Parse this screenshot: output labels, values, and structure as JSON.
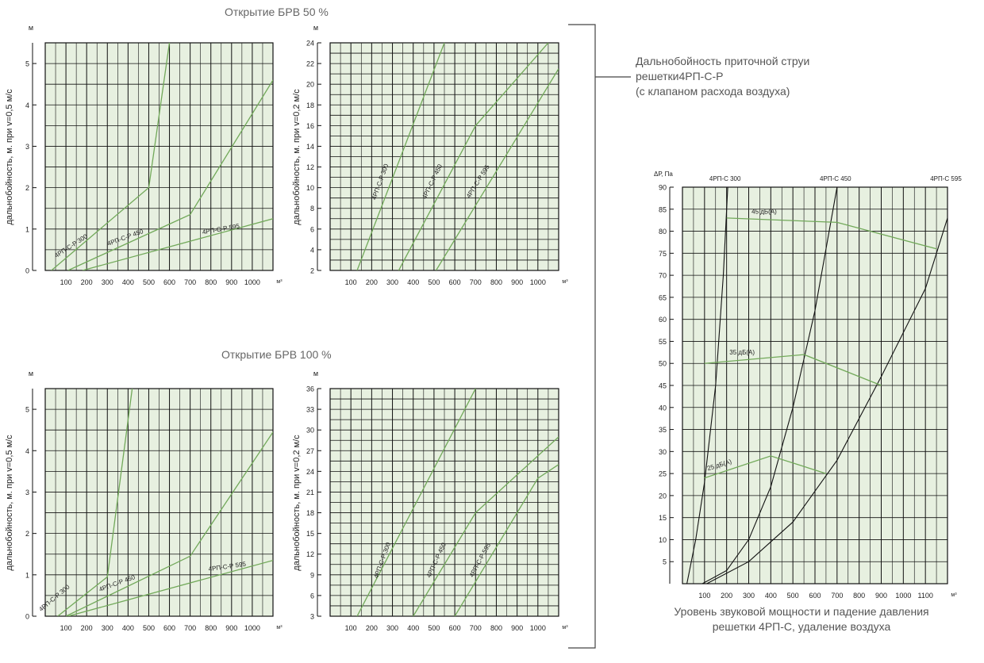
{
  "section_50_title": "Открытие БРВ 50 %",
  "section_100_title": "Открытие БРВ 100 %",
  "side_label": {
    "line1": "Дальнобойность приточной струи",
    "line2": "решетки4РП-С-Р",
    "line3": "(с клапаном расхода воздуха)"
  },
  "bottom_caption": {
    "line1": "Уровень звуковой мощности и падение давления",
    "line2": "решетки 4РП-С, удаление воздуха"
  },
  "colors": {
    "grid_bg": "#e7f0e0",
    "grid_line": "#111111",
    "green_line": "#72a95a",
    "black_line": "#111111"
  },
  "chart_data": [
    {
      "id": "c1",
      "type": "line",
      "ylabel": "дальнобойность, м. при v=0,5 м/с",
      "yunit": "м",
      "xunit": "м³",
      "xlim": [
        0,
        1100
      ],
      "ylim": [
        0,
        5.5
      ],
      "xticks": [
        100,
        200,
        300,
        400,
        500,
        600,
        700,
        800,
        900,
        1000
      ],
      "yticks": [
        0,
        1,
        2,
        3,
        4,
        5
      ],
      "series": [
        {
          "name": "4РП-С-Р 300",
          "points": [
            [
              30,
              0
            ],
            [
              500,
              2.0
            ],
            [
              600,
              5.5
            ]
          ]
        },
        {
          "name": "4РП-С-Р 450",
          "points": [
            [
              110,
              0
            ],
            [
              700,
              1.35
            ],
            [
              1100,
              4.6
            ]
          ]
        },
        {
          "name": "4РП-С-Р 595",
          "points": [
            [
              180,
              0
            ],
            [
              1100,
              1.25
            ]
          ]
        }
      ],
      "labels": [
        {
          "text": "4РП-С-Р 300",
          "x": 130,
          "y": 0.55,
          "angle": -33
        },
        {
          "text": "4РП-С-Р 450",
          "x": 390,
          "y": 0.75,
          "angle": -20
        },
        {
          "text": "4РП-С-Р 595",
          "x": 850,
          "y": 0.95,
          "angle": -10
        }
      ]
    },
    {
      "id": "c2",
      "type": "line",
      "ylabel": "дальнобойность, м. при v=0,2 м/с",
      "yunit": "м",
      "xunit": "м³",
      "xlim": [
        0,
        1100
      ],
      "ylim": [
        2,
        24
      ],
      "xticks": [
        100,
        200,
        300,
        400,
        500,
        600,
        700,
        800,
        900,
        1000
      ],
      "yticks": [
        2,
        4,
        6,
        8,
        10,
        12,
        14,
        16,
        18,
        20,
        22,
        24
      ],
      "series": [
        {
          "name": "4РП-С-Р 300",
          "points": [
            [
              130,
              2
            ],
            [
              550,
              24
            ]
          ]
        },
        {
          "name": "4РП-С-Р 450",
          "points": [
            [
              330,
              2
            ],
            [
              700,
              16
            ],
            [
              1050,
              24
            ]
          ]
        },
        {
          "name": "4РП-С-Р 595",
          "points": [
            [
              510,
              2
            ],
            [
              1100,
              21.5
            ]
          ]
        }
      ],
      "labels": [
        {
          "text": "4РП-С-Р 300",
          "x": 250,
          "y": 10.5,
          "angle": -70
        },
        {
          "text": "4РП-С-Р 450",
          "x": 500,
          "y": 10.5,
          "angle": -64
        },
        {
          "text": "4РП-С-Р 595",
          "x": 720,
          "y": 10.5,
          "angle": -58
        }
      ]
    },
    {
      "id": "c3",
      "type": "line",
      "ylabel": "дальнобойность, м. при v=0,5 м/с",
      "yunit": "м",
      "xunit": "м³",
      "xlim": [
        0,
        1100
      ],
      "ylim": [
        0,
        5.5
      ],
      "xticks": [
        100,
        200,
        300,
        400,
        500,
        600,
        700,
        800,
        900,
        1000
      ],
      "yticks": [
        0,
        1,
        2,
        3,
        4,
        5
      ],
      "series": [
        {
          "name": "4РП-С-Р 300",
          "points": [
            [
              60,
              0
            ],
            [
              300,
              0.95
            ],
            [
              420,
              5.5
            ]
          ]
        },
        {
          "name": "4РП-С-Р 450",
          "points": [
            [
              100,
              0
            ],
            [
              700,
              1.45
            ],
            [
              1100,
              4.45
            ]
          ]
        },
        {
          "name": "4РП-С-Р 595",
          "points": [
            [
              110,
              0
            ],
            [
              1100,
              1.35
            ]
          ]
        }
      ],
      "labels": [
        {
          "text": "4РП-С-Р 300",
          "x": 50,
          "y": 0.4,
          "angle": -40
        },
        {
          "text": "4РП-С-Р 450",
          "x": 350,
          "y": 0.75,
          "angle": -20
        },
        {
          "text": "4РП-С-Р 595",
          "x": 880,
          "y": 1.15,
          "angle": -8
        }
      ]
    },
    {
      "id": "c4",
      "type": "line",
      "ylabel": "дальнобойность, м. при v=0,2 м/с",
      "yunit": "м",
      "xunit": "м³",
      "xlim": [
        0,
        1100
      ],
      "ylim": [
        3,
        36
      ],
      "xticks": [
        100,
        200,
        300,
        400,
        500,
        600,
        700,
        800,
        900,
        1000
      ],
      "yticks": [
        3,
        6,
        9,
        12,
        15,
        18,
        21,
        24,
        27,
        30,
        33,
        36
      ],
      "series": [
        {
          "name": "4РП-С-Р 300",
          "points": [
            [
              130,
              3
            ],
            [
              700,
              36
            ]
          ]
        },
        {
          "name": "4РП-С-Р 450",
          "points": [
            [
              400,
              3
            ],
            [
              700,
              18
            ],
            [
              1100,
              29
            ]
          ]
        },
        {
          "name": "4РП-С-Р 595",
          "points": [
            [
              600,
              3
            ],
            [
              1000,
              23
            ],
            [
              1100,
              25
            ]
          ]
        }
      ],
      "labels": [
        {
          "text": "4РП-С-Р 300",
          "x": 260,
          "y": 11,
          "angle": -70
        },
        {
          "text": "4РП-С-Р 450",
          "x": 520,
          "y": 11,
          "angle": -65
        },
        {
          "text": "4РП-С-Р 595",
          "x": 730,
          "y": 11,
          "angle": -62
        }
      ]
    },
    {
      "id": "c5",
      "type": "line",
      "ylabel": "ΔР, Па",
      "xunit": "м³",
      "xlim": [
        0,
        1200
      ],
      "ylim": [
        0,
        90
      ],
      "xticks": [
        100,
        200,
        300,
        400,
        500,
        600,
        700,
        800,
        900,
        1000,
        1100
      ],
      "yticks": [
        5,
        10,
        15,
        20,
        25,
        30,
        35,
        40,
        45,
        50,
        55,
        60,
        65,
        70,
        75,
        80,
        85,
        90
      ],
      "series_labels": [
        {
          "text": "4РП-С 300",
          "x": 200
        },
        {
          "text": "4РП-С 450",
          "x": 700
        },
        {
          "text": "4РП-С 595",
          "x": 1200
        }
      ],
      "series": [
        {
          "name": "4РП-С 300",
          "color": "black",
          "points": [
            [
              20,
              0
            ],
            [
              60,
              10
            ],
            [
              100,
              23
            ],
            [
              150,
              45
            ],
            [
              185,
              70
            ],
            [
              205,
              90
            ]
          ]
        },
        {
          "name": "4РП-С 450",
          "color": "black",
          "points": [
            [
              90,
              0
            ],
            [
              200,
              3
            ],
            [
              300,
              10
            ],
            [
              400,
              22
            ],
            [
              500,
              40
            ],
            [
              600,
              62
            ],
            [
              700,
              90
            ]
          ]
        },
        {
          "name": "4РП-С 595",
          "color": "black",
          "points": [
            [
              110,
              0
            ],
            [
              300,
              5
            ],
            [
              500,
              14
            ],
            [
              700,
              28
            ],
            [
              900,
              47
            ],
            [
              1100,
              67
            ],
            [
              1200,
              83
            ]
          ]
        },
        {
          "name": "45 дБ(А)",
          "color": "green",
          "points": [
            [
              200,
              83
            ],
            [
              700,
              82
            ],
            [
              1150,
              76
            ]
          ]
        },
        {
          "name": "35 дБ(А)",
          "color": "green",
          "points": [
            [
              100,
              50
            ],
            [
              550,
              52
            ],
            [
              900,
              45
            ]
          ]
        },
        {
          "name": "25 дБ(А)",
          "color": "green",
          "points": [
            [
              100,
              24
            ],
            [
              400,
              29
            ],
            [
              650,
              25
            ]
          ]
        }
      ],
      "labels": [
        {
          "text": "45 дБ(А)",
          "x": 370,
          "y": 84
        },
        {
          "text": "35 дБ(А)",
          "x": 270,
          "y": 52
        },
        {
          "text": "25 дБ(А)",
          "x": 170,
          "y": 26.5,
          "angle": -17
        }
      ]
    }
  ]
}
